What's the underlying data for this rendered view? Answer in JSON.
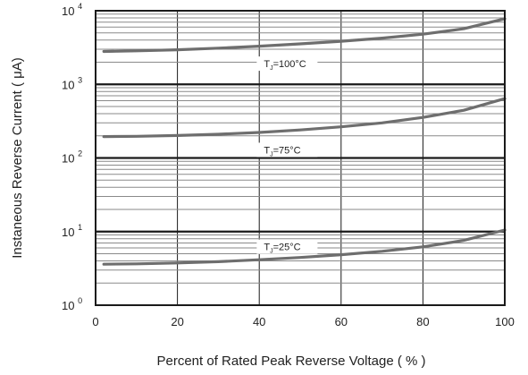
{
  "chart_data": {
    "type": "line",
    "xlabel": "Percent of Rated Peak Reverse Voltage ( % )",
    "ylabel": "Instaneous Reverse Current ( μA)",
    "x_ticks": [
      "0",
      "20",
      "40",
      "60",
      "80",
      "100"
    ],
    "xlim": [
      0,
      100
    ],
    "y_scale": "log",
    "ylim": [
      1,
      10000
    ],
    "y_ticks": [
      {
        "base": "10",
        "exp": "0"
      },
      {
        "base": "10",
        "exp": "1"
      },
      {
        "base": "10",
        "exp": "2"
      },
      {
        "base": "10",
        "exp": "3"
      },
      {
        "base": "10",
        "exp": "4"
      }
    ],
    "grid": true,
    "series": [
      {
        "name": "T_J=100°C",
        "label_main": "T",
        "label_sub": "J",
        "label_rest": "=100°C",
        "x": [
          2,
          10,
          20,
          30,
          40,
          50,
          60,
          70,
          80,
          90,
          100
        ],
        "y": [
          2800,
          2850,
          2950,
          3100,
          3300,
          3550,
          3850,
          4250,
          4800,
          5700,
          7800
        ]
      },
      {
        "name": "T_J=75°C",
        "label_main": "T",
        "label_sub": "J",
        "label_rest": "=75°C",
        "x": [
          2,
          10,
          20,
          30,
          40,
          50,
          60,
          70,
          80,
          90,
          100
        ],
        "y": [
          195,
          197,
          202,
          210,
          222,
          240,
          265,
          300,
          355,
          445,
          640
        ]
      },
      {
        "name": "T_J=25°C",
        "label_main": "T",
        "label_sub": "J",
        "label_rest": "=25°C",
        "x": [
          2,
          10,
          20,
          30,
          40,
          50,
          60,
          70,
          80,
          90,
          100
        ],
        "y": [
          3.6,
          3.65,
          3.75,
          3.9,
          4.15,
          4.45,
          4.85,
          5.4,
          6.2,
          7.6,
          10.5
        ]
      }
    ],
    "colors": {
      "curve": "#6e6e6e",
      "grid_major": "#1a1a1a",
      "grid_minor": "#8a8a8a",
      "frame": "#1a1a1a"
    }
  }
}
